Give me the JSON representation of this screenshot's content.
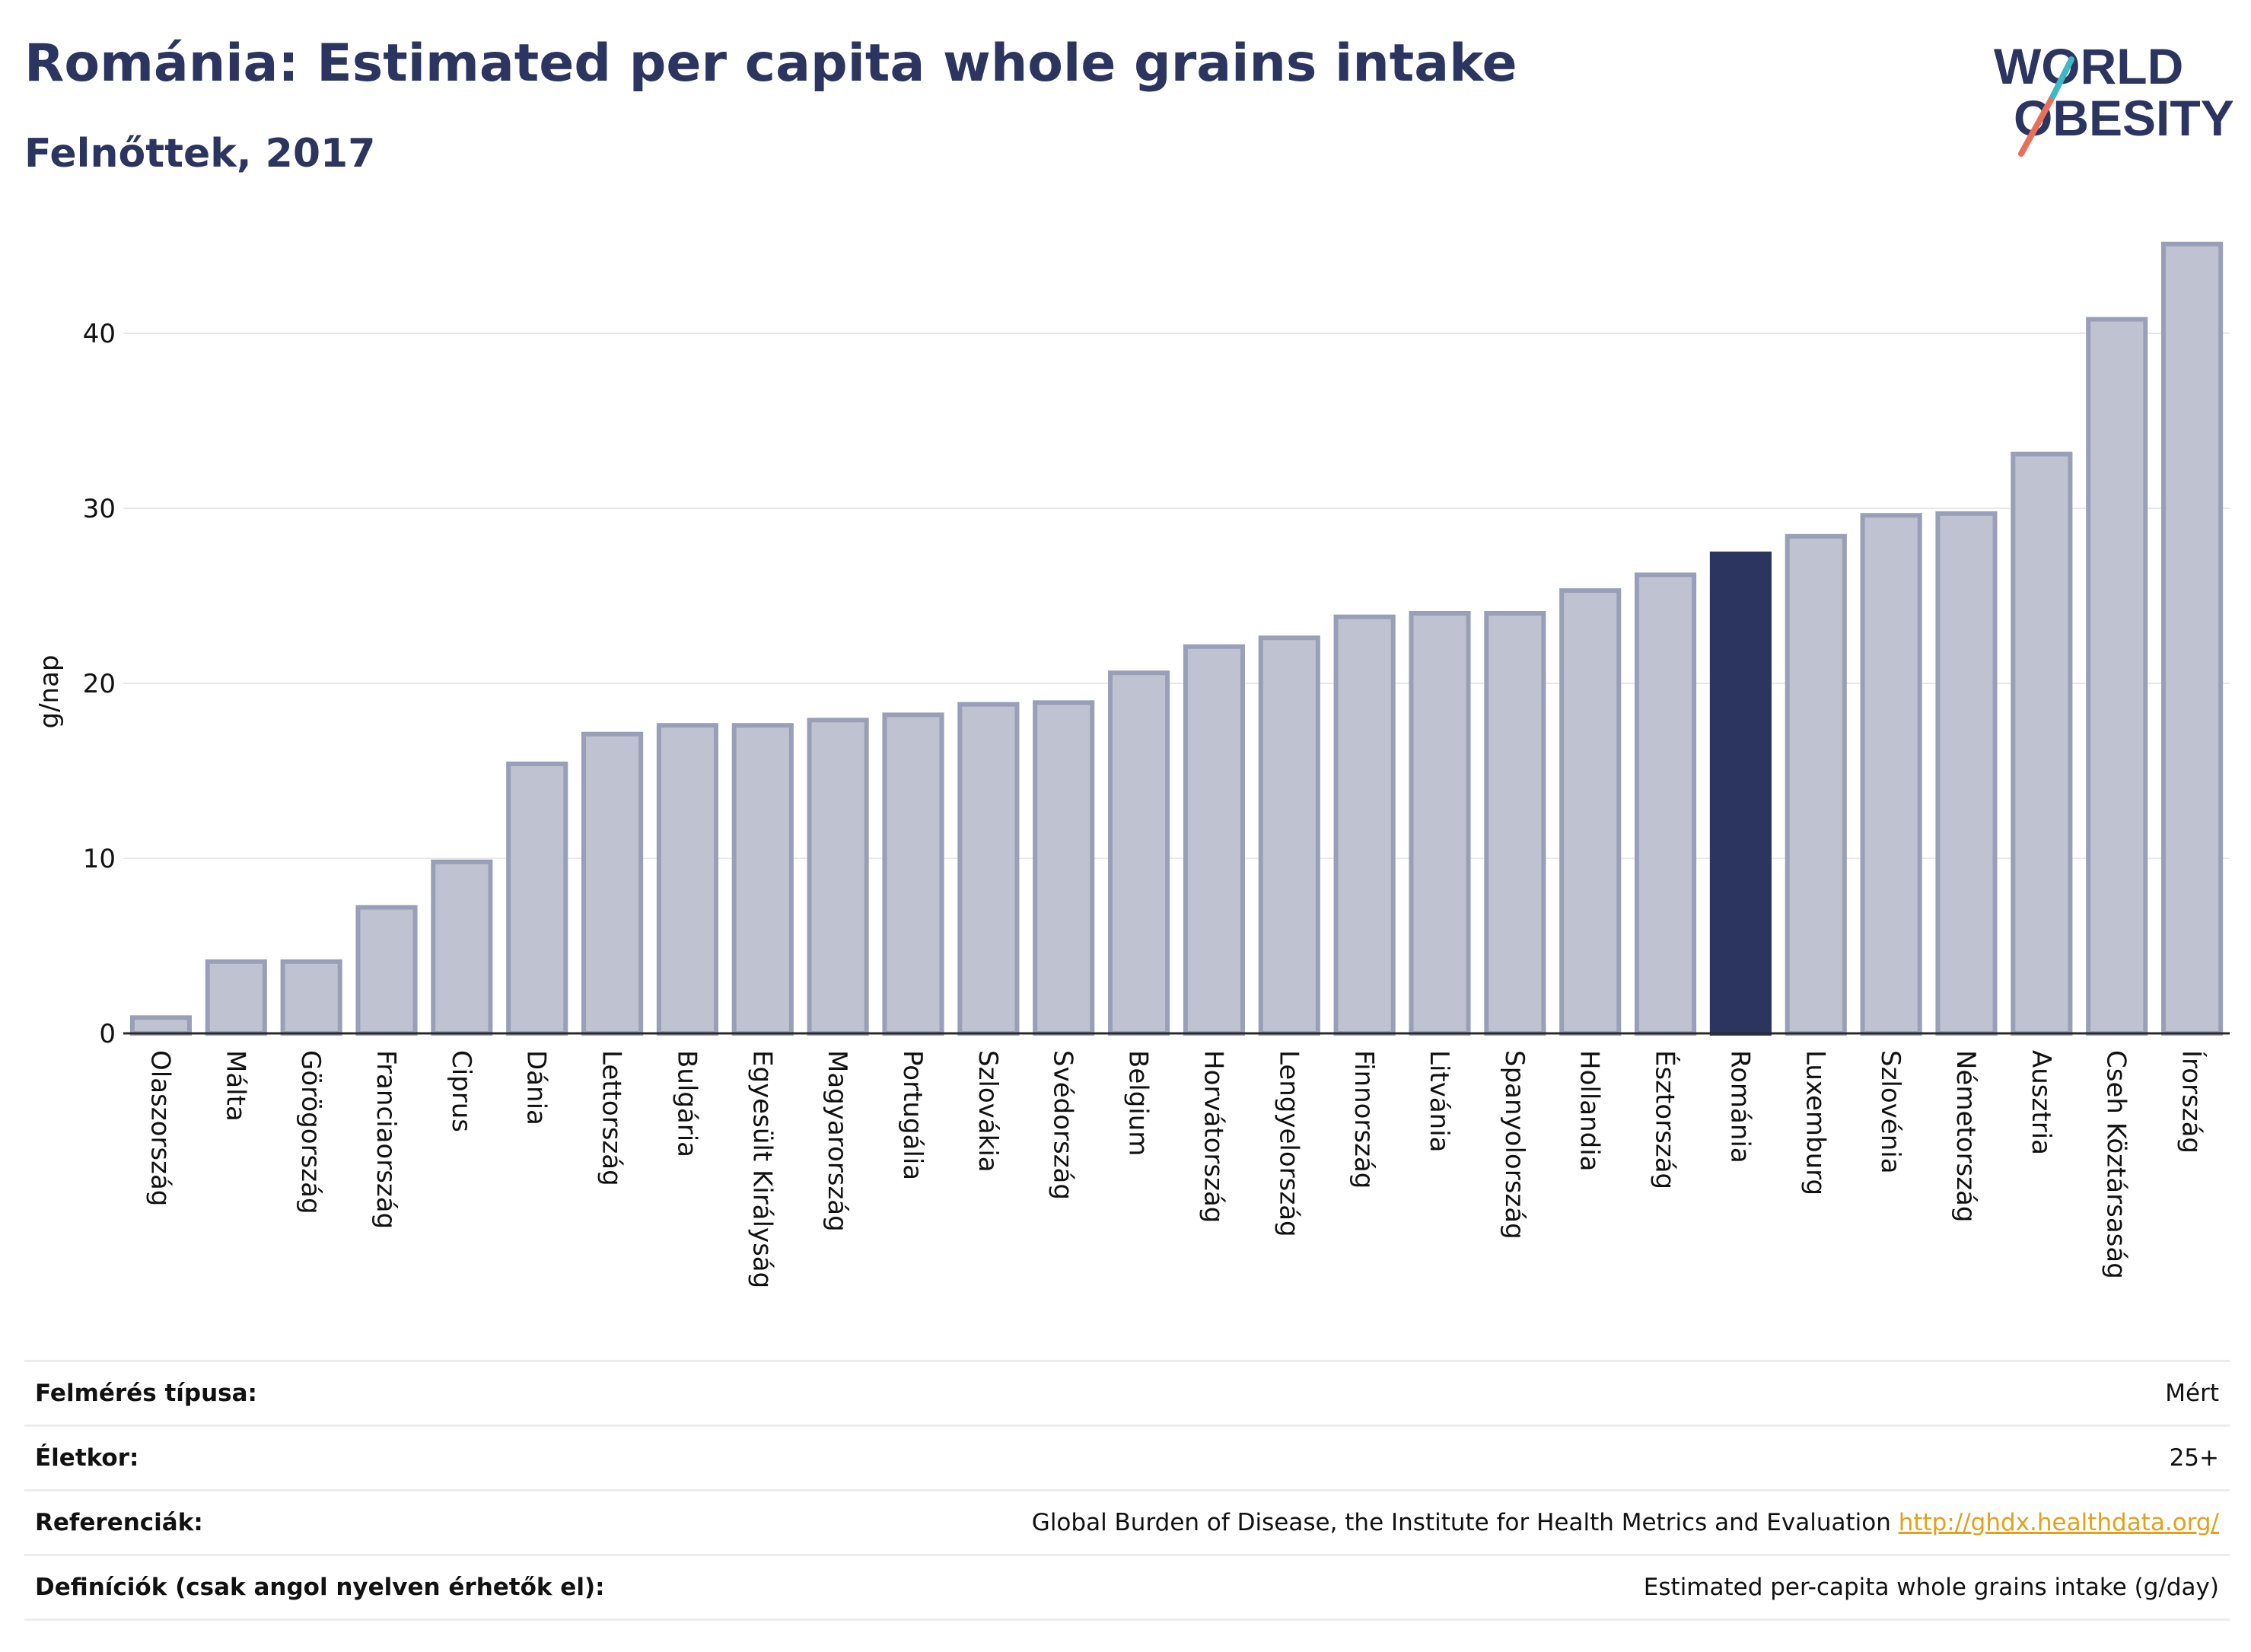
{
  "header": {
    "title": "Románia: Estimated per capita whole grains intake",
    "subtitle": "Felnőttek, 2017"
  },
  "logo": {
    "line1": "WORLD",
    "line2": "OBESITY"
  },
  "colors": {
    "highlight": "#2b3560",
    "bar": "#bfc2d0",
    "bar_border": "#9a9fb8",
    "accent_teal": "#3fb8c5",
    "accent_coral": "#e8705a",
    "link": "#e0a21a"
  },
  "chart_data": {
    "type": "bar",
    "ylabel": "g/nap",
    "xlabel": "",
    "ylim": [
      0,
      46
    ],
    "yticks": [
      0,
      10,
      20,
      30,
      40
    ],
    "grid": true,
    "highlight": "Románia",
    "categories": [
      "Olaszország",
      "Málta",
      "Görögország",
      "Franciaország",
      "Ciprus",
      "Dánia",
      "Lettország",
      "Bulgária",
      "Egyesült Királyság",
      "Magyarország",
      "Portugália",
      "Szlovákia",
      "Svédország",
      "Belgium",
      "Horvátország",
      "Lengyelország",
      "Finnország",
      "Litvánia",
      "Spanyolország",
      "Hollandia",
      "Észtország",
      "Románia",
      "Luxemburg",
      "Szlovénia",
      "Németország",
      "Ausztria",
      "Cseh Köztársaság",
      "Írország"
    ],
    "values": [
      0.9,
      4.1,
      4.1,
      7.2,
      9.8,
      15.4,
      17.1,
      17.6,
      17.6,
      17.9,
      18.2,
      18.8,
      18.9,
      20.6,
      22.1,
      22.6,
      23.8,
      24.0,
      24.0,
      25.3,
      26.2,
      27.4,
      28.4,
      29.6,
      29.7,
      33.1,
      40.8,
      45.1
    ]
  },
  "info": [
    {
      "label": "Felmérés típusa:",
      "value": "Mért"
    },
    {
      "label": "Életkor:",
      "value": "25+"
    },
    {
      "label": "Referenciák:",
      "value": "Global Burden of Disease, the Institute for Health Metrics and Evaluation",
      "link": "http://ghdx.healthdata.org/"
    },
    {
      "label": "Definíciók (csak angol nyelven érhetők el):",
      "value": "Estimated per-capita whole grains intake (g/day)"
    }
  ]
}
